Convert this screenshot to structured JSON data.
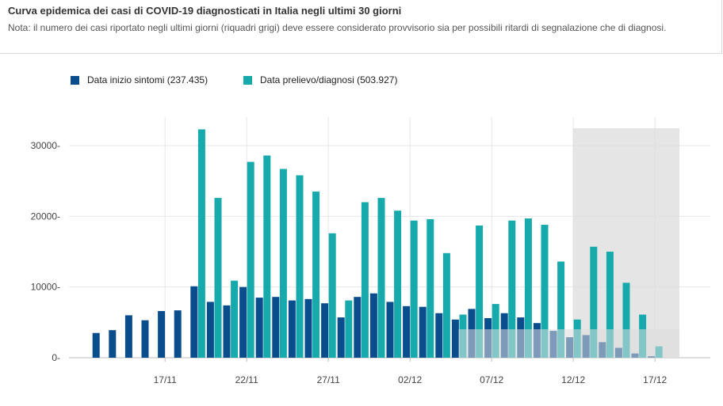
{
  "title": "Curva epidemica dei casi di COVID-19 diagnosticati in Italia negli ultimi 30 giorni",
  "note": "Nota: il numero dei casi riportato negli ultimi giorni (riquadri grigi) deve essere considerato provvisorio sia per possibili ritardi di segnalazione che di diagnosi.",
  "colors": {
    "series1": "#0a4d8c",
    "series2": "#17aaad",
    "shade": "#dcdcdc",
    "grid": "#e6e6e6",
    "axis": "#bbbbbb"
  },
  "legend": [
    {
      "label": "Data inizio sintomi (237.435)"
    },
    {
      "label": "Data prelievo/diagnosi (503.927)"
    }
  ],
  "chart_data": {
    "type": "bar",
    "x": [
      "13/11",
      "14/11",
      "15/11",
      "16/11",
      "17/11",
      "18/11",
      "19/11",
      "20/11",
      "21/11",
      "22/11",
      "23/11",
      "24/11",
      "25/11",
      "26/11",
      "27/11",
      "28/11",
      "29/11",
      "30/11",
      "01/12",
      "02/12",
      "03/12",
      "04/12",
      "05/12",
      "06/12",
      "07/12",
      "08/12",
      "09/12",
      "10/12",
      "11/12",
      "12/12",
      "13/12",
      "14/12",
      "15/12",
      "16/12",
      "17/12",
      "18/12"
    ],
    "xticks": [
      "17/11",
      "22/11",
      "27/11",
      "02/12",
      "07/12",
      "12/12",
      "17/12"
    ],
    "series": [
      {
        "name": "Data inizio sintomi (237.435)",
        "values": [
          3500,
          3900,
          6000,
          5300,
          6600,
          6700,
          10100,
          7900,
          7400,
          10000,
          8500,
          8600,
          8100,
          8300,
          7700,
          5700,
          8600,
          9100,
          7900,
          7300,
          7200,
          6300,
          5400,
          6900,
          5600,
          6300,
          5700,
          4900,
          3800,
          2900,
          3200,
          2200,
          1400,
          600,
          200,
          null
        ]
      },
      {
        "name": "Data prelievo/diagnosi (503.927)",
        "values": [
          null,
          null,
          null,
          null,
          null,
          null,
          32300,
          22600,
          10900,
          27700,
          28600,
          26700,
          25800,
          23500,
          17600,
          8100,
          22000,
          22600,
          20800,
          19400,
          19600,
          14800,
          6100,
          18700,
          7600,
          19400,
          19700,
          18800,
          13600,
          5400,
          15700,
          15000,
          10600,
          6100,
          1600,
          null
        ]
      }
    ],
    "provisional_from": "12/12",
    "ylim": [
      0,
      32500
    ],
    "yticks": [
      0,
      10000,
      20000,
      30000
    ],
    "ytick_labels": [
      "0-",
      "10000-",
      "20000-",
      "30000-"
    ],
    "grid": true,
    "legend_position": "top-left"
  }
}
